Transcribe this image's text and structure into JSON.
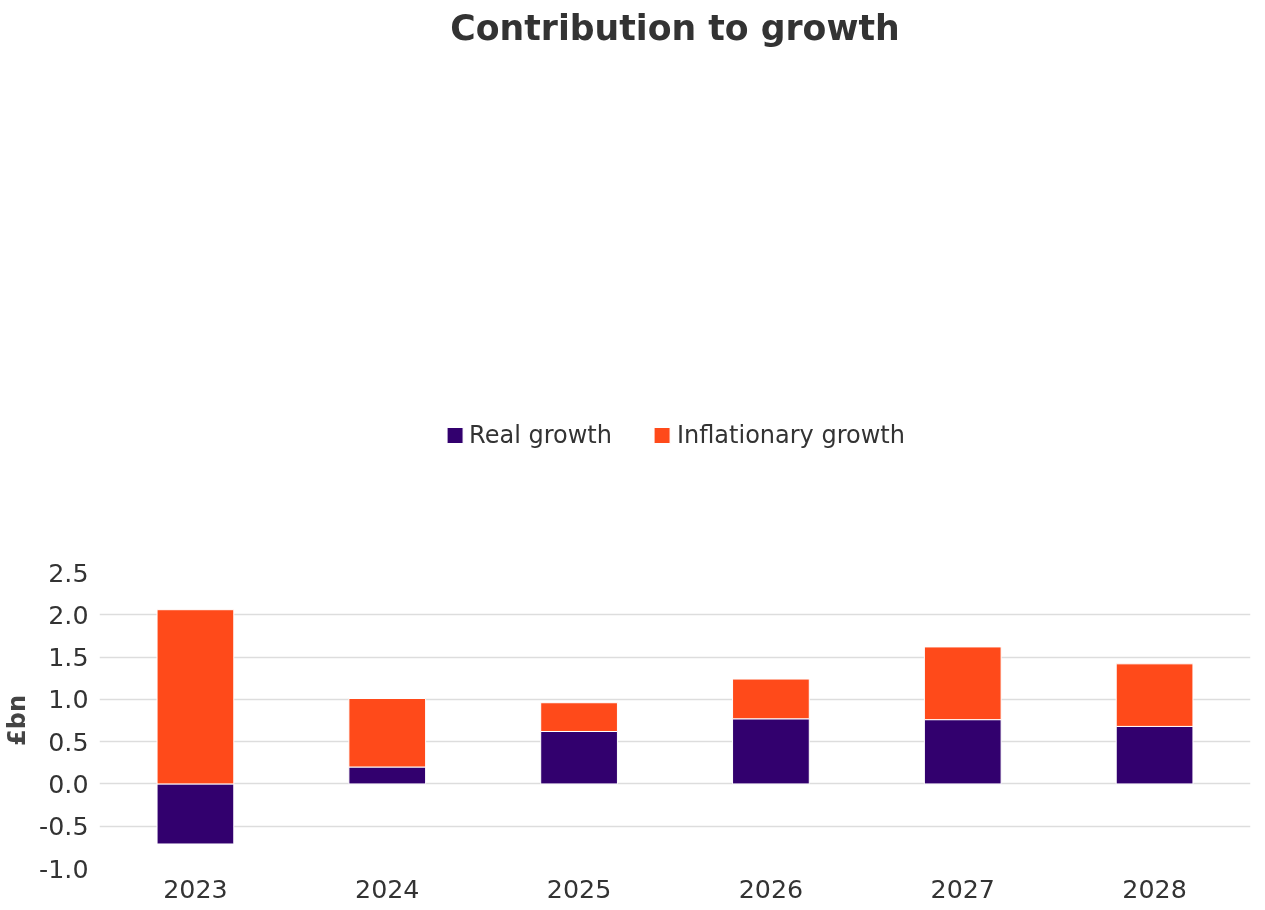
{
  "chart_data": {
    "type": "bar",
    "title": "Contribution to growth",
    "ylabel": "£bn",
    "categories": [
      "2023",
      "2024",
      "2025",
      "2026",
      "2027",
      "2028"
    ],
    "series": [
      {
        "name": "Real growth",
        "color": "#32006e",
        "values": [
          -0.71,
          0.2,
          0.62,
          0.77,
          0.76,
          0.68
        ]
      },
      {
        "name": "Inflationary growth",
        "color": "#ff4a1a",
        "values": [
          2.06,
          0.81,
          0.34,
          0.47,
          0.86,
          0.74
        ]
      }
    ],
    "stacked": true,
    "ylim": [
      -1.0,
      2.5
    ],
    "yticks": [
      {
        "value": -1.0,
        "label": "-1.0"
      },
      {
        "value": -0.5,
        "label": "-0.5"
      },
      {
        "value": 0,
        "label": "0.0"
      },
      {
        "value": 0.5,
        "label": "0.5"
      },
      {
        "value": 1.0,
        "label": "1.0"
      },
      {
        "value": 1.5,
        "label": "1.5"
      },
      {
        "value": 2.0,
        "label": "2.0"
      },
      {
        "value": 2.5,
        "label": "2.5"
      }
    ],
    "grid": "y",
    "legend": "top"
  }
}
